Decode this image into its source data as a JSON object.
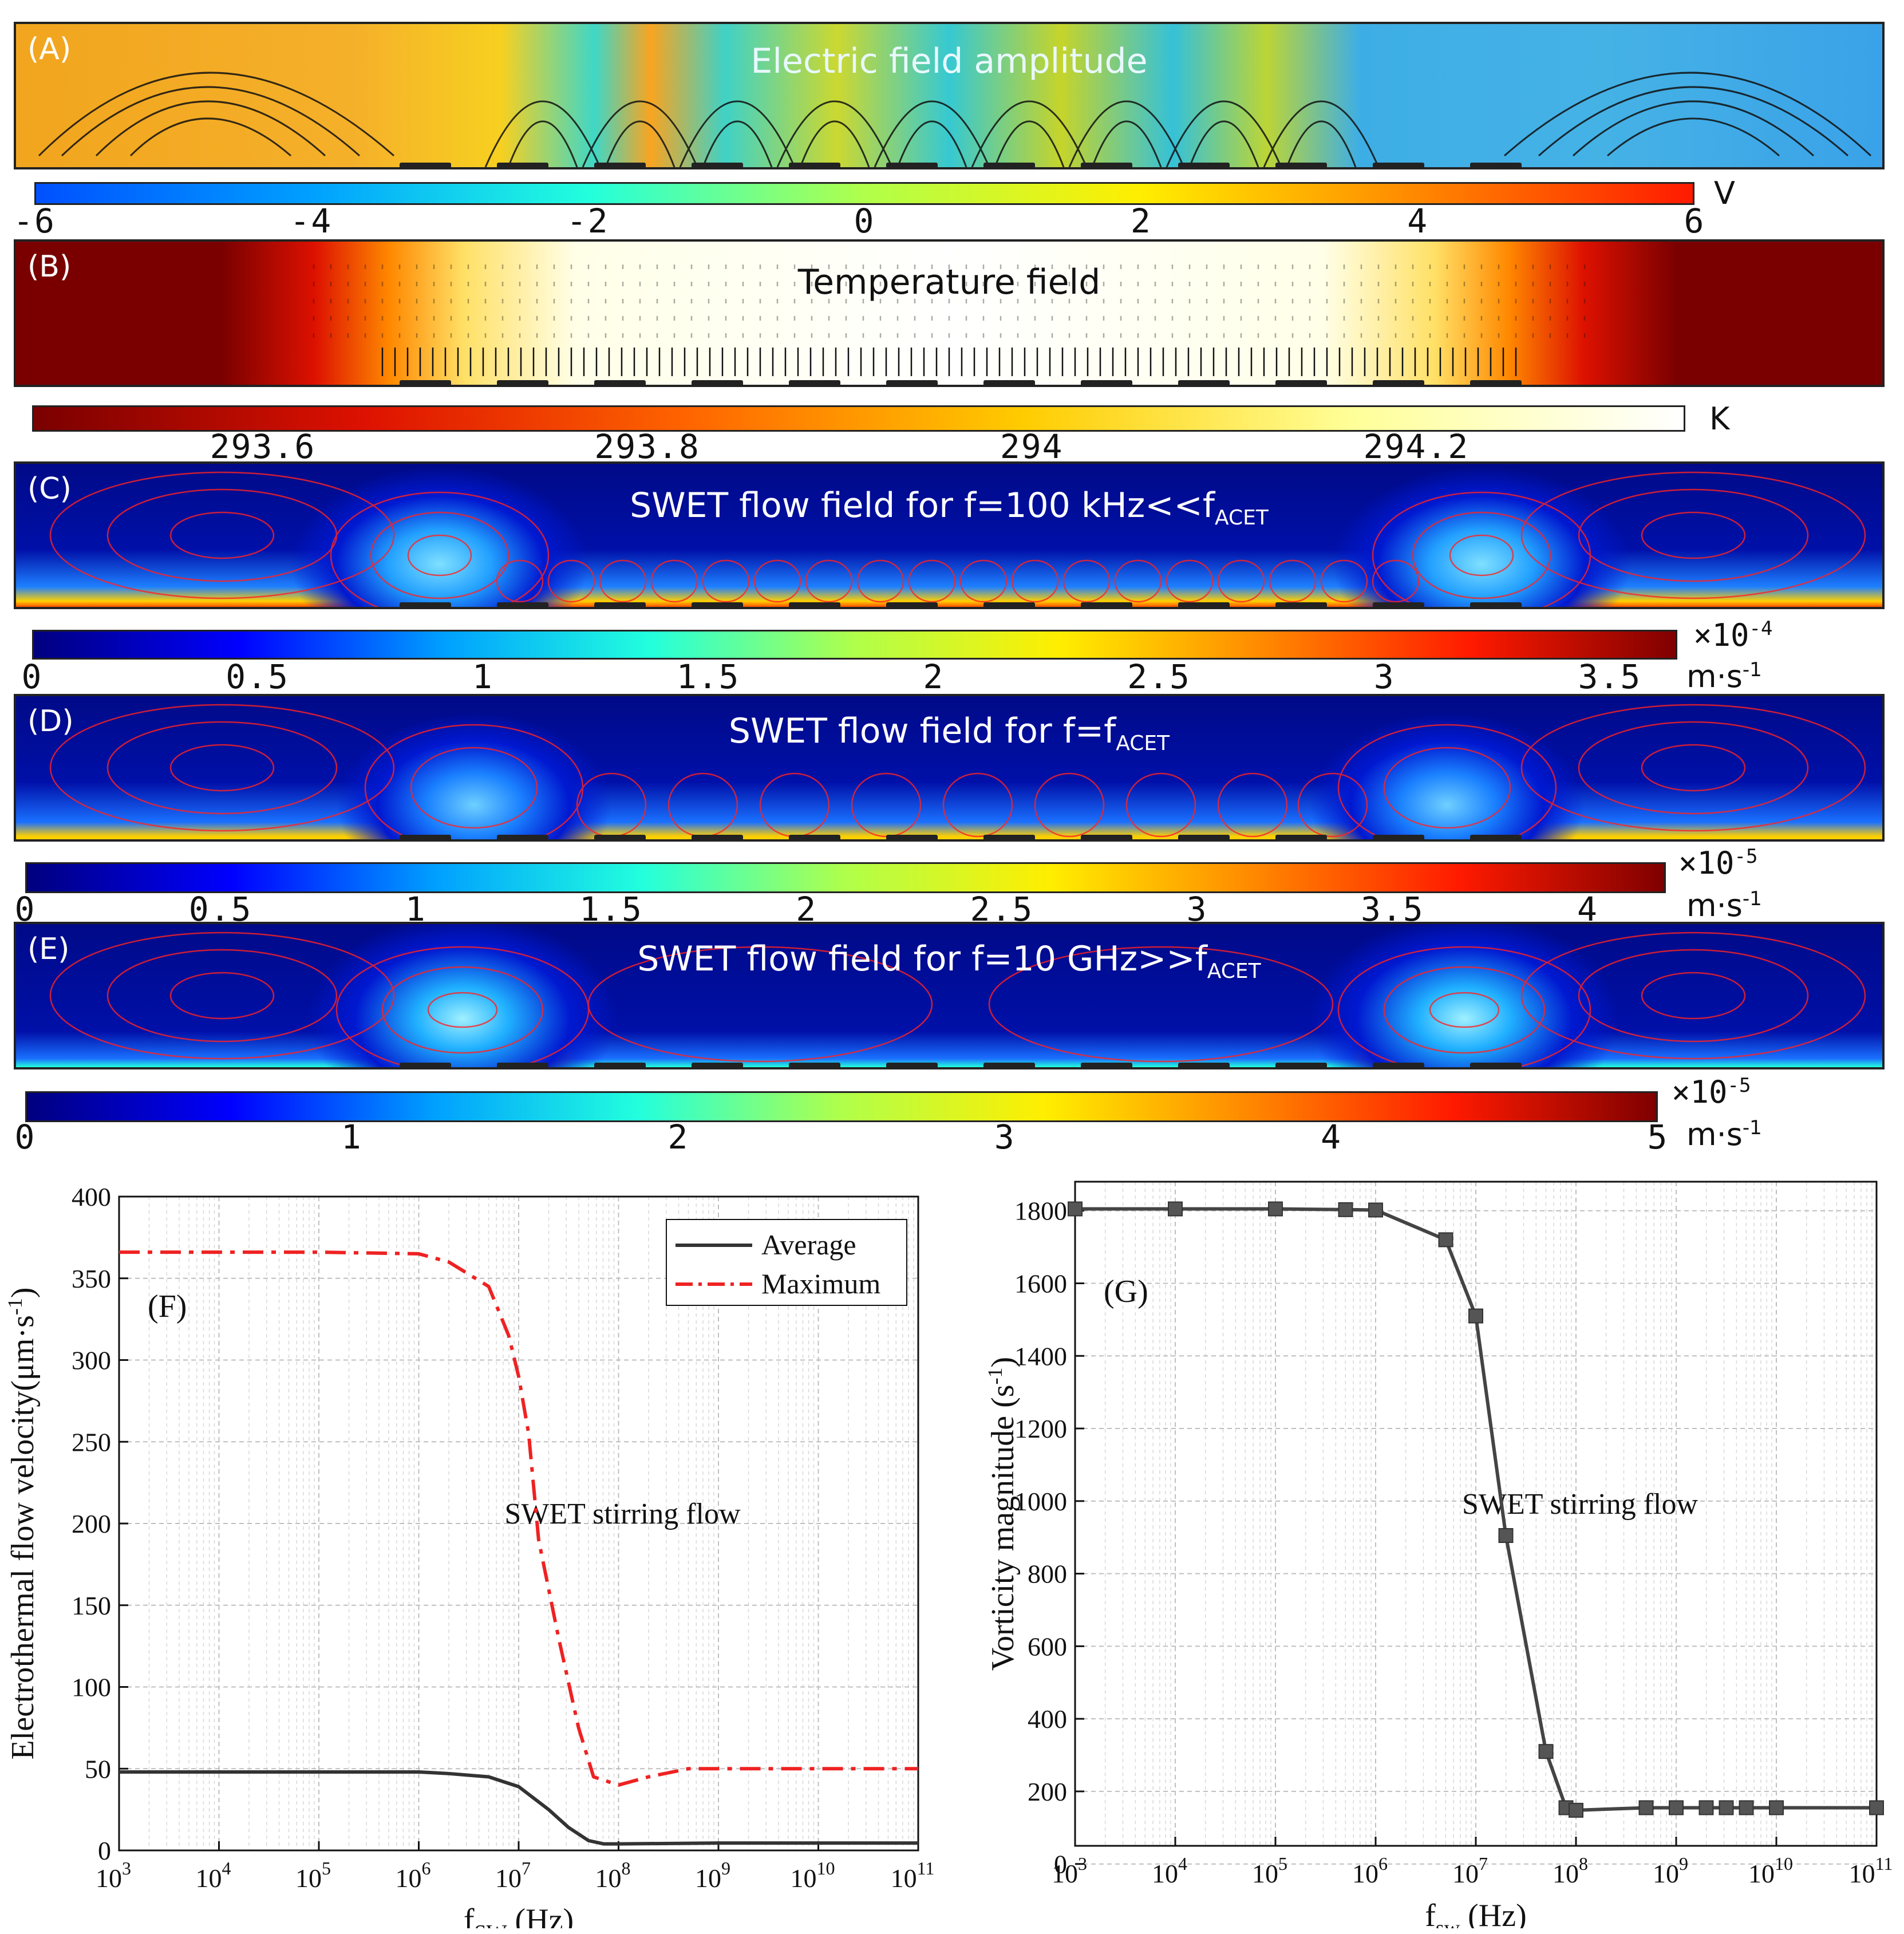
{
  "panels": {
    "A": {
      "label": "(A)",
      "title": "Electric field amplitude",
      "cbar_ticks": [
        "-6",
        "-4",
        "-2",
        "0",
        "2",
        "4",
        "6"
      ],
      "unit": "V"
    },
    "B": {
      "label": "(B)",
      "title": "Temperature field",
      "cbar_ticks": [
        "293.6",
        "293.8",
        "294",
        "294.2"
      ],
      "unit": "K"
    },
    "C": {
      "label": "(C)",
      "title_main": "SWET flow field for f=100 kHz<<f",
      "title_sub": "ACET",
      "cbar_ticks": [
        "0",
        "0.5",
        "1",
        "1.5",
        "2",
        "2.5",
        "3",
        "3.5"
      ],
      "multiplier": "×10",
      "multiplier_exp": "-4",
      "unit": "m·s",
      "unit_exp": "-1"
    },
    "D": {
      "label": "(D)",
      "title_main": "SWET flow field for f=f",
      "title_sub": "ACET",
      "cbar_ticks": [
        "0",
        "0.5",
        "1",
        "1.5",
        "2",
        "2.5",
        "3",
        "3.5",
        "4"
      ],
      "multiplier": "×10",
      "multiplier_exp": "-5",
      "unit": "m·s",
      "unit_exp": "-1"
    },
    "E": {
      "label": "(E)",
      "title_main": "SWET flow field for f=10 GHz>>f",
      "title_sub": "ACET",
      "cbar_ticks": [
        "0",
        "1",
        "2",
        "3",
        "4",
        "5"
      ],
      "multiplier": "×10",
      "multiplier_exp": "-5",
      "unit": "m·s",
      "unit_exp": "-1"
    }
  },
  "colors": {
    "jet": [
      "#00007f",
      "#0000ff",
      "#00a0ff",
      "#22ffdd",
      "#b0ff4a",
      "#ffee00",
      "#ff8800",
      "#ff1a00",
      "#7f0000"
    ],
    "heat": [
      "#7a0000",
      "#dd1100",
      "#ff6600",
      "#ffcc00",
      "#ffff99",
      "#ffffff"
    ],
    "streamline": "#ff2222"
  },
  "chart_data": [
    {
      "type": "line",
      "panel_label": "(F)",
      "xlabel_main": "f",
      "xlabel_sub": "SW",
      "xlabel_rest": " (Hz)",
      "ylabel": "Electrothermal flow velocity(μm·s",
      "ylabel_exp": "-1",
      "ylabel_close": ")",
      "x_scale": "log",
      "xlim_exp": [
        3,
        11
      ],
      "x_ticks": [
        "3",
        "4",
        "5",
        "6",
        "7",
        "8",
        "9",
        "10",
        "11"
      ],
      "ylim": [
        0,
        400
      ],
      "y_ticks": [
        "0",
        "50",
        "100",
        "150",
        "200",
        "250",
        "300",
        "350",
        "400"
      ],
      "annotation": "SWET stirring flow",
      "legend": [
        "Average",
        "Maximum"
      ],
      "series": [
        {
          "name": "Average",
          "style": "solid",
          "color": "#333333",
          "x_log": [
            3,
            4,
            5,
            6,
            6.3,
            6.7,
            7,
            7.3,
            7.5,
            7.7,
            7.85,
            8,
            9,
            10,
            11
          ],
          "values": [
            48,
            48,
            48,
            48,
            47,
            45,
            39,
            25,
            14,
            6,
            4,
            4,
            4.5,
            4.5,
            4.5
          ]
        },
        {
          "name": "Maximum",
          "style": "dashdot",
          "color": "#ee2222",
          "x_log": [
            3,
            4,
            5,
            6,
            6.3,
            6.7,
            6.9,
            7,
            7.1,
            7.2,
            7.4,
            7.6,
            7.75,
            8,
            8.3,
            8.7,
            9,
            10,
            11
          ],
          "values": [
            366,
            366,
            366,
            365,
            360,
            345,
            315,
            290,
            255,
            190,
            130,
            75,
            45,
            40,
            45,
            50,
            50,
            50,
            50
          ]
        }
      ]
    },
    {
      "type": "line",
      "panel_label": "(G)",
      "xlabel_main": "f",
      "xlabel_sub": "sw",
      "xlabel_rest": " (Hz)",
      "ylabel": "Vorticity magnitude (s",
      "ylabel_exp": "-1",
      "ylabel_close": ")",
      "x_scale": "log",
      "xlim_exp": [
        3,
        11
      ],
      "x_ticks": [
        "3",
        "4",
        "5",
        "6",
        "7",
        "8",
        "9",
        "10",
        "11"
      ],
      "ylim": [
        0,
        1800
      ],
      "y_ticks": [
        "0",
        "200",
        "400",
        "600",
        "800",
        "1000",
        "1200",
        "1400",
        "1600",
        "1800"
      ],
      "annotation": "SWET stirring flow",
      "series": [
        {
          "name": "Vorticity",
          "style": "solid-square",
          "color": "#444444",
          "x_log": [
            3,
            4,
            5,
            5.7,
            6,
            6.7,
            7,
            7.3,
            7.7,
            7.9,
            8,
            8.7,
            9,
            9.3,
            9.5,
            9.7,
            10,
            11
          ],
          "values": [
            1805,
            1805,
            1805,
            1803,
            1802,
            1720,
            1510,
            905,
            310,
            155,
            148,
            155,
            155,
            155,
            155,
            155,
            155,
            155
          ]
        }
      ]
    }
  ]
}
